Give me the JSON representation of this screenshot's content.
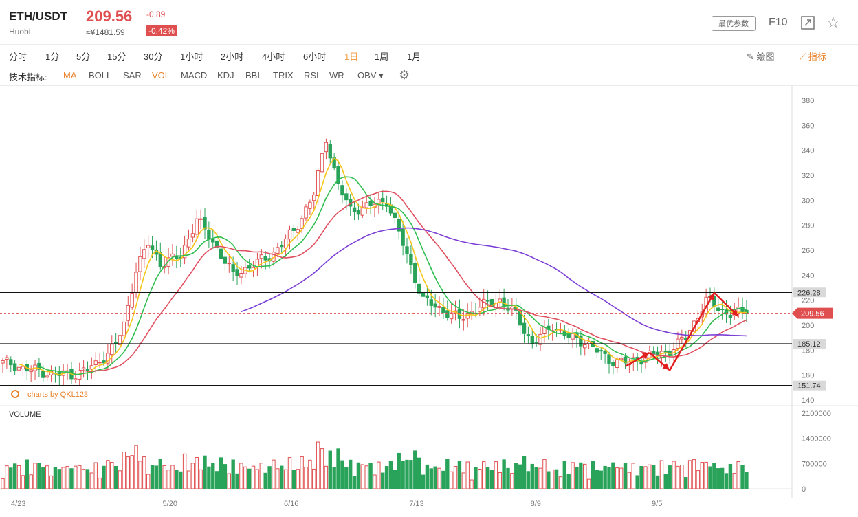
{
  "header": {
    "pair": "ETH/USDT",
    "exchange": "Huobi",
    "price": "209.56",
    "cny_price": "≈¥1481.59",
    "change": "-0.89",
    "change_pct": "-0.42%",
    "param_button": "最优参数",
    "f10": "F10",
    "colors": {
      "up": "#e04f4f",
      "down": "#2aa35a"
    }
  },
  "timeframes": [
    {
      "label": "分时",
      "active": false
    },
    {
      "label": "1分",
      "active": false
    },
    {
      "label": "5分",
      "active": false
    },
    {
      "label": "15分",
      "active": false
    },
    {
      "label": "30分",
      "active": false
    },
    {
      "label": "1小时",
      "active": false
    },
    {
      "label": "2小时",
      "active": false
    },
    {
      "label": "4小时",
      "active": false
    },
    {
      "label": "6小时",
      "active": false
    },
    {
      "label": "1日",
      "active": true
    },
    {
      "label": "1周",
      "active": false
    },
    {
      "label": "1月",
      "active": false
    }
  ],
  "tools": {
    "draw": "绘图",
    "indicators": "指标"
  },
  "indicator_bar": {
    "label": "技术指标:",
    "items": [
      {
        "label": "MA",
        "active": true
      },
      {
        "label": "BOLL",
        "active": false
      },
      {
        "label": "SAR",
        "active": false
      },
      {
        "label": "VOL",
        "active": true
      },
      {
        "label": "MACD",
        "active": false
      },
      {
        "label": "KDJ",
        "active": false
      },
      {
        "label": "BBI",
        "active": false
      },
      {
        "label": "TRIX",
        "active": false
      },
      {
        "label": "RSI",
        "active": false
      },
      {
        "label": "WR",
        "active": false
      },
      {
        "label": "OBV",
        "active": false,
        "dropdown": true
      }
    ]
  },
  "chart_data": {
    "type": "candlestick",
    "watermark": "charts by QKL123",
    "volume_label": "VOLUME",
    "price_axis": {
      "min": 140,
      "max": 380,
      "ticks": [
        140,
        160,
        180,
        200,
        220,
        240,
        260,
        280,
        300,
        320,
        340,
        360,
        380
      ]
    },
    "volume_axis": {
      "max": 2100000,
      "ticks": [
        0,
        700000,
        1400000,
        2100000
      ],
      "tick_labels": [
        "0",
        "700000",
        "1400000",
        "2100000"
      ]
    },
    "x_labels": [
      "4/23",
      "5/20",
      "6/16",
      "7/13",
      "8/9",
      "9/5"
    ],
    "horizontal_lines": [
      226.28,
      185.12,
      151.74
    ],
    "horizontal_line_labels": [
      "226.28",
      "185.12",
      "151.74"
    ],
    "last_price": 209.56,
    "last_price_label": "209.56",
    "close_anchors": [
      [
        0,
        170
      ],
      [
        10,
        162
      ],
      [
        17,
        160
      ],
      [
        23,
        168
      ],
      [
        28,
        185
      ],
      [
        30,
        200
      ],
      [
        33,
        245
      ],
      [
        36,
        265
      ],
      [
        39,
        250
      ],
      [
        44,
        255
      ],
      [
        48,
        285
      ],
      [
        53,
        262
      ],
      [
        57,
        240
      ],
      [
        61,
        247
      ],
      [
        66,
        255
      ],
      [
        72,
        275
      ],
      [
        77,
        305
      ],
      [
        80,
        350
      ],
      [
        83,
        312
      ],
      [
        86,
        292
      ],
      [
        90,
        295
      ],
      [
        95,
        300
      ],
      [
        99,
        265
      ],
      [
        104,
        220
      ],
      [
        109,
        212
      ],
      [
        113,
        205
      ],
      [
        118,
        215
      ],
      [
        123,
        220
      ],
      [
        127,
        208
      ],
      [
        131,
        185
      ],
      [
        136,
        200
      ],
      [
        140,
        190
      ],
      [
        144,
        187
      ],
      [
        150,
        172
      ],
      [
        155,
        170
      ],
      [
        159,
        175
      ],
      [
        164,
        178
      ],
      [
        169,
        190
      ],
      [
        174,
        220
      ],
      [
        179,
        209.56
      ]
    ],
    "ma_lines": [
      {
        "name": "MA5",
        "color": "#f5c518",
        "period": 5
      },
      {
        "name": "MA10",
        "color": "#2ebd4e",
        "period": 10
      },
      {
        "name": "MA20",
        "color": "#e04f5f",
        "period": 20
      },
      {
        "name": "MA60",
        "color": "#7c3fd6",
        "period": 60
      }
    ],
    "annotation_arrows": [
      [
        [
          154,
          167
        ],
        [
          160,
          178
        ]
      ],
      [
        [
          160,
          178
        ],
        [
          165,
          164
        ]
      ],
      [
        [
          165,
          164
        ],
        [
          176,
          226
        ]
      ],
      [
        [
          176,
          226
        ],
        [
          182,
          207
        ]
      ]
    ]
  }
}
